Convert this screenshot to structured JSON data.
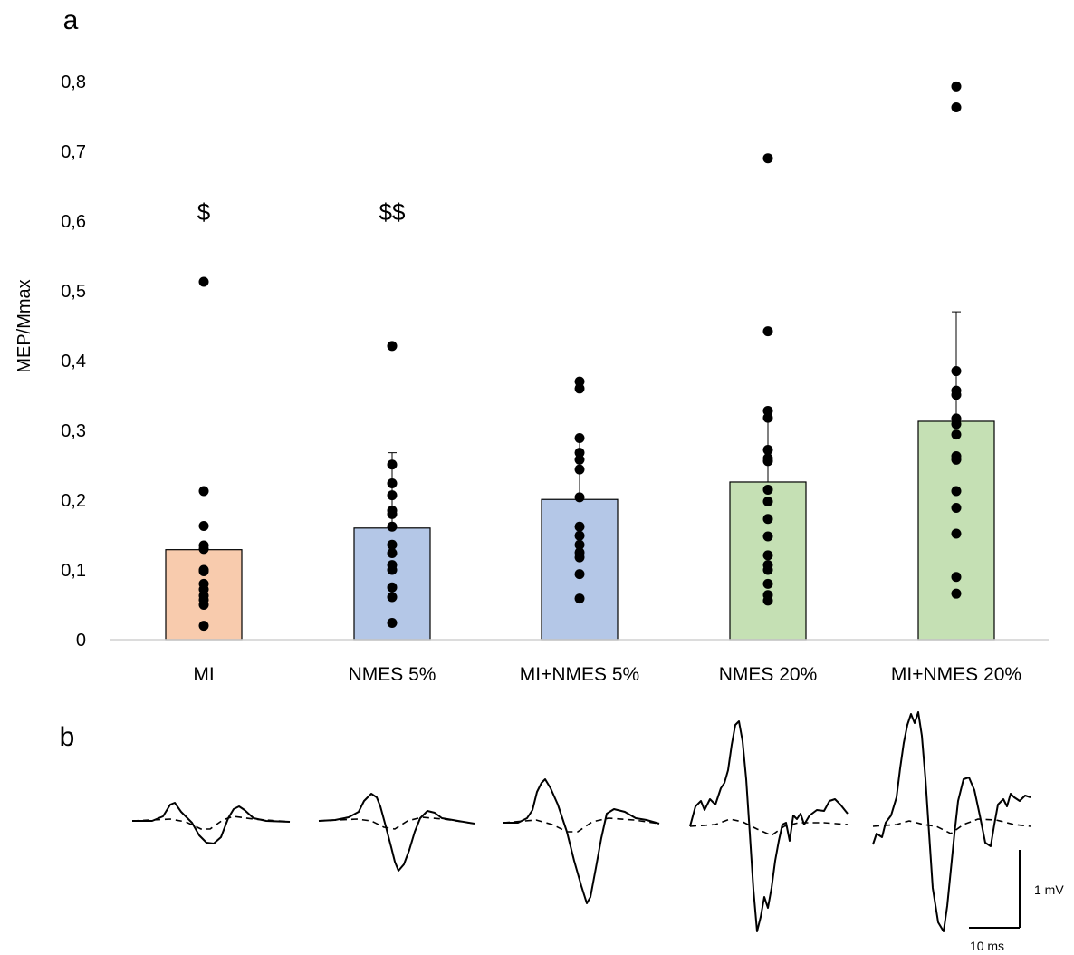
{
  "panel_a_label": "a",
  "panel_b_label": "b",
  "chart_data": {
    "type": "bar",
    "title": "",
    "xlabel": "",
    "ylabel": "MEP/Mmax",
    "ylim": [
      0,
      0.8
    ],
    "yticks": [
      "0",
      "0,1",
      "0,2",
      "0,3",
      "0,4",
      "0,5",
      "0,6",
      "0,7",
      "0,8"
    ],
    "grid": false,
    "categories": [
      "MI",
      "NMES 5%",
      "MI+NMES 5%",
      "NMES 20%",
      "MI+NMES 20%"
    ],
    "values": [
      0.129,
      0.16,
      0.201,
      0.226,
      0.313
    ],
    "error_upper": [
      0.135,
      0.268,
      0.288,
      0.318,
      0.47
    ],
    "bar_colors": [
      "#f8cbad",
      "#b4c7e7",
      "#b4c7e7",
      "#c5e0b4",
      "#c5e0b4"
    ],
    "annotations": [
      "$",
      "$$",
      "",
      "",
      ""
    ],
    "points": [
      [
        0.513,
        0.213,
        0.163,
        0.135,
        0.13,
        0.1,
        0.098,
        0.08,
        0.072,
        0.063,
        0.057,
        0.05,
        0.02
      ],
      [
        0.421,
        0.251,
        0.224,
        0.207,
        0.185,
        0.18,
        0.162,
        0.136,
        0.124,
        0.107,
        0.1,
        0.075,
        0.061,
        0.024
      ],
      [
        0.37,
        0.36,
        0.289,
        0.268,
        0.258,
        0.244,
        0.204,
        0.162,
        0.149,
        0.136,
        0.125,
        0.118,
        0.094,
        0.059
      ],
      [
        0.69,
        0.442,
        0.328,
        0.318,
        0.272,
        0.26,
        0.256,
        0.215,
        0.198,
        0.173,
        0.148,
        0.121,
        0.107,
        0.1,
        0.08,
        0.064,
        0.056
      ],
      [
        0.793,
        0.763,
        0.385,
        0.357,
        0.351,
        0.317,
        0.309,
        0.294,
        0.263,
        0.258,
        0.213,
        0.189,
        0.152,
        0.09,
        0.066
      ]
    ]
  },
  "traces": {
    "amplitude_scale": "1 mV",
    "time_scale": "10 ms"
  }
}
